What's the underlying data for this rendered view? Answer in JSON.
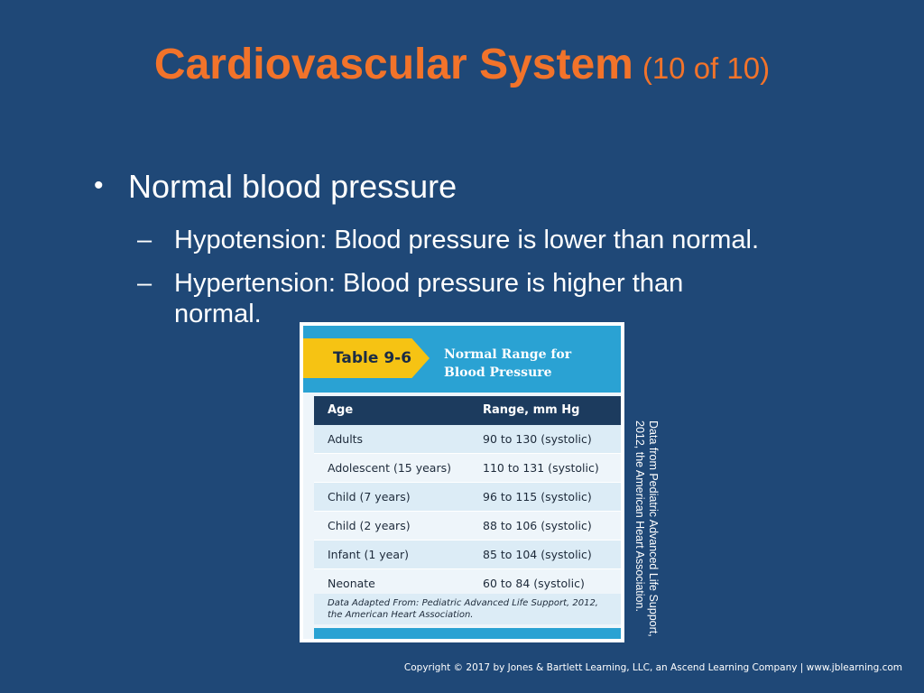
{
  "slide": {
    "title": "Cardiovascular System",
    "title_suffix": "(10 of 10)",
    "bullet": {
      "marker": "•",
      "text": "Normal blood pressure"
    },
    "sub_bullets": [
      {
        "marker": "–",
        "text": "Hypotension: Blood pressure is lower than normal."
      },
      {
        "marker": "–",
        "text": "Hypertension: Blood pressure is higher than normal."
      }
    ]
  },
  "table": {
    "tag": "Table 9-6",
    "title_line1": "Normal Range for",
    "title_line2": "Blood Pressure",
    "headers": [
      "Age",
      "Range, mm Hg"
    ],
    "rows": [
      [
        "Adults",
        "90 to 130 (systolic)"
      ],
      [
        "Adolescent (15 years)",
        "110 to 131 (systolic)"
      ],
      [
        "Child (7 years)",
        "96 to 115  (systolic)"
      ],
      [
        "Child (2 years)",
        "88 to 106  (systolic)"
      ],
      [
        "Infant (1 year)",
        "85 to 104 (systolic)"
      ],
      [
        "Neonate",
        "60 to 84 (systolic)"
      ]
    ],
    "note": "Data Adapted From: Pediatric Advanced Life Support, 2012, the American Heart Association.",
    "colors": {
      "header_band": "#2aa2d3",
      "tag": "#f6c313",
      "column_header": "#1c3b5e"
    }
  },
  "credit": {
    "line1": "Data from Pediatric Advanced Life Support,",
    "line2": "2012, the American Heart Association."
  },
  "copyright": "Copyright © 2017 by Jones & Bartlett Learning, LLC, an Ascend Learning Company  |  www.jblearning.com",
  "colors": {
    "background": "#1f4877",
    "title": "#f2732a",
    "text": "#ffffff"
  }
}
